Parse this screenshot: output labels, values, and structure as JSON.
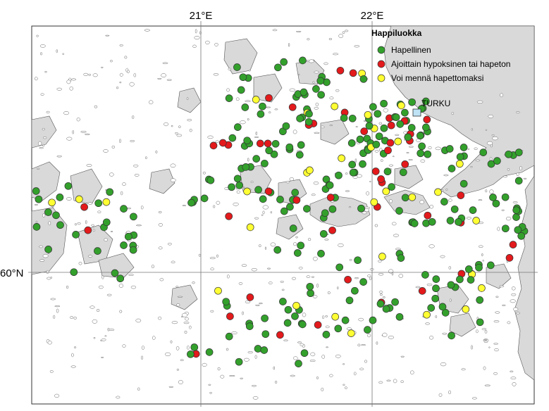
{
  "map": {
    "axis_labels": {
      "lon_21": "21°E",
      "lon_22": "22°E",
      "lat_60": "60°N"
    },
    "legend": {
      "title": "Happiluokka",
      "items": [
        {
          "label": "Hapellinen",
          "color": "#33a02c"
        },
        {
          "label": "Ajoittain hypoksinen tai hapeton",
          "color": "#e31a1c"
        },
        {
          "label": "Voi mennä hapettomaksi",
          "color": "#ffff33"
        }
      ]
    },
    "city": {
      "name": "TURKU",
      "marker_color": "#bfe3f5"
    },
    "land_color": "#d9d9d9"
  }
}
